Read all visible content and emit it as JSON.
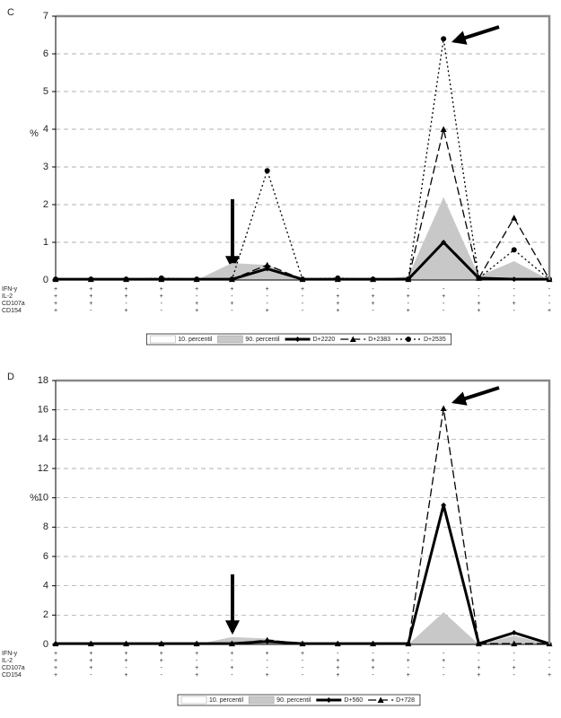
{
  "chart_data": [
    {
      "type": "line",
      "title": "C",
      "ylabel": "%",
      "ylim": [
        0,
        7
      ],
      "yticks": [
        0,
        1,
        2,
        3,
        4,
        5,
        6,
        7
      ],
      "grid": true,
      "markers": [
        "IFN-y",
        "IL-2",
        "CD107a",
        "CD154"
      ],
      "categories": [
        [
          "+",
          "+",
          "+",
          "+"
        ],
        [
          "+",
          "+",
          "+",
          "-"
        ],
        [
          "+",
          "+",
          "-",
          "+"
        ],
        [
          "+",
          "+",
          "-",
          "-"
        ],
        [
          "+",
          "-",
          "+",
          "+"
        ],
        [
          "+",
          "-",
          "+",
          "-"
        ],
        [
          "+",
          "-",
          "-",
          "+"
        ],
        [
          "+",
          "-",
          "-",
          "-"
        ],
        [
          "-",
          "+",
          "+",
          "+"
        ],
        [
          "-",
          "+",
          "+",
          "-"
        ],
        [
          "-",
          "+",
          "-",
          "+"
        ],
        [
          "-",
          "+",
          "-",
          "-"
        ],
        [
          "-",
          "-",
          "+",
          "+"
        ],
        [
          "-",
          "-",
          "+",
          "-"
        ],
        [
          "-",
          "-",
          "-",
          "+"
        ]
      ],
      "series": [
        {
          "name": "10. percentil",
          "color": "#ffffff",
          "style": "area",
          "values": [
            0,
            0,
            0,
            0,
            0,
            0,
            0,
            0,
            0,
            0,
            0,
            0.2,
            0,
            0,
            0
          ]
        },
        {
          "name": "90. percentil",
          "color": "#c8c8c8",
          "style": "area",
          "values": [
            0,
            0,
            0,
            0,
            0,
            0.45,
            0.4,
            0,
            0,
            0,
            0.1,
            2.2,
            0.1,
            0.5,
            0
          ]
        },
        {
          "name": "D+2220",
          "color": "#000000",
          "style": "solid",
          "marker": "diamond",
          "values": [
            0.02,
            0.02,
            0.02,
            0.02,
            0.02,
            0.02,
            0.3,
            0.02,
            0.02,
            0.02,
            0.02,
            1.0,
            0.05,
            0.02,
            0.02
          ]
        },
        {
          "name": "D+2383",
          "color": "#000000",
          "style": "dash",
          "marker": "triangle",
          "values": [
            0.02,
            0.02,
            0.02,
            0.02,
            0.02,
            0.02,
            0.4,
            0.02,
            0.02,
            0.02,
            0.02,
            4.0,
            0.05,
            1.65,
            0.02
          ]
        },
        {
          "name": "D+2535",
          "color": "#000000",
          "style": "dot",
          "marker": "circle",
          "values": [
            0.02,
            0.02,
            0.02,
            0.05,
            0.02,
            0.02,
            2.9,
            0.02,
            0.05,
            0.02,
            0.02,
            6.4,
            0.05,
            0.8,
            0.02
          ]
        }
      ]
    },
    {
      "type": "line",
      "title": "D",
      "ylabel": "%",
      "ylim": [
        0,
        18
      ],
      "yticks": [
        0,
        2,
        4,
        6,
        8,
        10,
        12,
        14,
        16,
        18
      ],
      "grid": true,
      "markers": [
        "IFN-y",
        "IL-2",
        "CD107a",
        "CD154"
      ],
      "categories": [
        [
          "+",
          "+",
          "+",
          "+"
        ],
        [
          "+",
          "+",
          "+",
          "-"
        ],
        [
          "+",
          "+",
          "-",
          "+"
        ],
        [
          "+",
          "+",
          "-",
          "-"
        ],
        [
          "+",
          "-",
          "+",
          "+"
        ],
        [
          "+",
          "-",
          "+",
          "-"
        ],
        [
          "+",
          "-",
          "-",
          "+"
        ],
        [
          "+",
          "-",
          "-",
          "-"
        ],
        [
          "-",
          "+",
          "+",
          "+"
        ],
        [
          "-",
          "+",
          "+",
          "-"
        ],
        [
          "-",
          "+",
          "-",
          "+"
        ],
        [
          "-",
          "+",
          "-",
          "-"
        ],
        [
          "-",
          "-",
          "+",
          "+"
        ],
        [
          "-",
          "-",
          "+",
          "-"
        ],
        [
          "-",
          "-",
          "-",
          "+"
        ]
      ],
      "series": [
        {
          "name": "10. percentil",
          "color": "#ffffff",
          "style": "area",
          "values": [
            0,
            0,
            0,
            0,
            0,
            0,
            0,
            0,
            0,
            0,
            0,
            0,
            0,
            0,
            0
          ]
        },
        {
          "name": "90. percentil",
          "color": "#c8c8c8",
          "style": "area",
          "values": [
            0,
            0,
            0,
            0,
            0,
            0.5,
            0.4,
            0,
            0,
            0,
            0,
            2.2,
            0,
            0.6,
            0
          ]
        },
        {
          "name": "D+560",
          "color": "#000000",
          "style": "solid",
          "marker": "diamond",
          "values": [
            0.05,
            0.05,
            0.05,
            0.05,
            0.05,
            0.05,
            0.2,
            0.05,
            0.05,
            0.05,
            0.05,
            9.5,
            0.05,
            0.8,
            0.05
          ]
        },
        {
          "name": "D+728",
          "color": "#000000",
          "style": "dash",
          "marker": "triangle",
          "values": [
            0.05,
            0.05,
            0.05,
            0.05,
            0.05,
            0.05,
            0.3,
            0.05,
            0.05,
            0.05,
            0.05,
            16.1,
            0.05,
            0.05,
            0.05
          ]
        }
      ]
    }
  ]
}
